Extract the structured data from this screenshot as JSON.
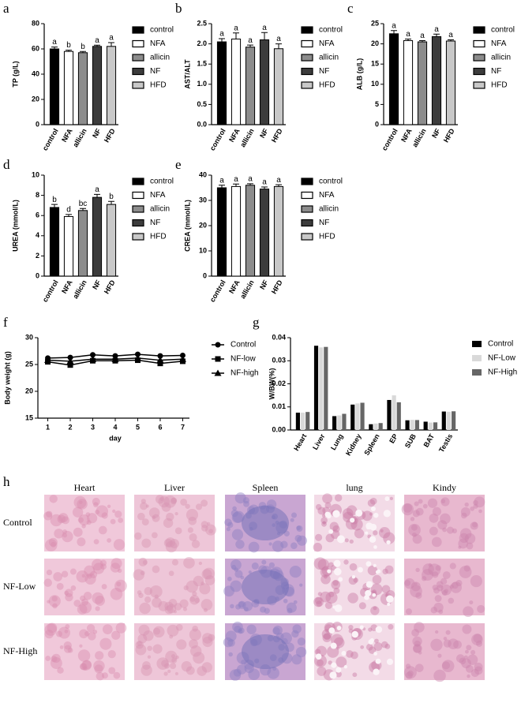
{
  "chart_data": [
    {
      "type": "bar",
      "panel": "a",
      "ylabel": "TP (g/L)",
      "categories": [
        "control",
        "NFA",
        "allicin",
        "NF",
        "HFD"
      ],
      "values": [
        60,
        58,
        57,
        62,
        62
      ],
      "errors": [
        1.5,
        1,
        1,
        1,
        3
      ],
      "letters": [
        "a",
        "b",
        "b",
        "a",
        "a"
      ],
      "colors": [
        "#000000",
        "#ffffff",
        "#8c8c8c",
        "#3c3c3c",
        "#c8c8c8"
      ],
      "ylim": [
        0,
        80
      ],
      "yticks": [
        0,
        20,
        40,
        60,
        80
      ]
    },
    {
      "type": "bar",
      "panel": "b",
      "ylabel": "AST/ALT",
      "categories": [
        "control",
        "NFA",
        "allicin",
        "NF",
        "HFD"
      ],
      "values": [
        2.05,
        2.12,
        1.92,
        2.1,
        1.88
      ],
      "errors": [
        0.08,
        0.15,
        0.05,
        0.18,
        0.12
      ],
      "letters": [
        "a",
        "a",
        "a",
        "a",
        "a"
      ],
      "colors": [
        "#000000",
        "#ffffff",
        "#8c8c8c",
        "#3c3c3c",
        "#c8c8c8"
      ],
      "ylim": [
        0,
        2.5
      ],
      "yticks": [
        {
          "value": 0,
          "label": "0.0"
        },
        0.5,
        {
          "value": 1,
          "label": "1.0"
        },
        1.5,
        {
          "value": 2,
          "label": "2.0"
        },
        2.5
      ]
    },
    {
      "type": "bar",
      "panel": "c",
      "ylabel": "ALB (g/L)",
      "categories": [
        "control",
        "NFA",
        "allicin",
        "NF",
        "HFD"
      ],
      "values": [
        22.5,
        20.8,
        20.5,
        21.8,
        20.7
      ],
      "errors": [
        0.8,
        0.4,
        0.3,
        0.6,
        0.3
      ],
      "letters": [
        "a",
        "a",
        "a",
        "a",
        "a"
      ],
      "colors": [
        "#000000",
        "#ffffff",
        "#8c8c8c",
        "#3c3c3c",
        "#c8c8c8"
      ],
      "ylim": [
        0,
        25
      ],
      "yticks": [
        0,
        5,
        10,
        15,
        20,
        25
      ]
    },
    {
      "type": "bar",
      "panel": "d",
      "ylabel": "UREA (mmol/L)",
      "categories": [
        "control",
        "NFA",
        "allicin",
        "NF",
        "HFD"
      ],
      "values": [
        6.8,
        5.9,
        6.5,
        7.8,
        7.1
      ],
      "errors": [
        0.3,
        0.2,
        0.2,
        0.3,
        0.3
      ],
      "letters": [
        "b",
        "d",
        "bc",
        "a",
        "b"
      ],
      "colors": [
        "#000000",
        "#ffffff",
        "#8c8c8c",
        "#3c3c3c",
        "#c8c8c8"
      ],
      "ylim": [
        0,
        10
      ],
      "yticks": [
        0,
        2,
        4,
        6,
        8,
        10
      ]
    },
    {
      "type": "bar",
      "panel": "e",
      "ylabel": "CREA (mmol/L)",
      "categories": [
        "control",
        "NFA",
        "allicin",
        "NF",
        "HFD"
      ],
      "values": [
        35,
        35.5,
        36,
        34.5,
        35.5
      ],
      "errors": [
        1,
        1,
        0.6,
        0.8,
        0.7
      ],
      "letters": [
        "a",
        "a",
        "a",
        "a",
        "a"
      ],
      "colors": [
        "#000000",
        "#ffffff",
        "#8c8c8c",
        "#3c3c3c",
        "#c8c8c8"
      ],
      "ylim": [
        0,
        40
      ],
      "yticks": [
        0,
        10,
        20,
        30,
        40
      ]
    },
    {
      "type": "line",
      "panel": "f",
      "xlabel": "day",
      "ylabel": "Body weight (g)",
      "x": [
        1,
        2,
        3,
        4,
        5,
        6,
        7
      ],
      "xlim": [
        0.7,
        7.3
      ],
      "xticks": [
        1,
        2,
        3,
        4,
        5,
        6,
        7
      ],
      "ylim": [
        15,
        30
      ],
      "yticks": [
        15,
        20,
        25,
        30
      ],
      "series": [
        {
          "name": "Control",
          "color": "#000000",
          "marker": "circle",
          "values": [
            26.2,
            26.3,
            26.8,
            26.6,
            26.9,
            26.6,
            26.7
          ]
        },
        {
          "name": "NF-low",
          "color": "#000000",
          "marker": "square",
          "values": [
            25.5,
            24.9,
            25.7,
            25.7,
            25.8,
            25.2,
            25.6
          ]
        },
        {
          "name": "NF-high",
          "color": "#000000",
          "marker": "triangle",
          "values": [
            25.8,
            25.6,
            26.0,
            26.0,
            26.2,
            25.8,
            26.0
          ]
        }
      ]
    },
    {
      "type": "bar",
      "panel": "g",
      "ylabel": "W/BW(%)",
      "categories": [
        "Heart",
        "Liver",
        "Lung",
        "Kidney",
        "Spleen",
        "EP",
        "SUB",
        "BAT",
        "Testis"
      ],
      "ylim": [
        0,
        0.04
      ],
      "yticks": [
        {
          "value": 0,
          "label": "0.00"
        },
        0.01,
        0.02,
        0.03,
        {
          "value": 0.04,
          "label": "0.04"
        }
      ],
      "series": [
        {
          "name": "Control",
          "color": "#000000",
          "values": [
            0.0075,
            0.0365,
            0.006,
            0.011,
            0.0025,
            0.013,
            0.0042,
            0.0036,
            0.008
          ]
        },
        {
          "name": "NF-Low",
          "color": "#d9d9d9",
          "values": [
            0.0075,
            0.0358,
            0.0063,
            0.0115,
            0.0028,
            0.015,
            0.0044,
            0.0032,
            0.0079
          ]
        },
        {
          "name": "NF-High",
          "color": "#666666",
          "values": [
            0.0078,
            0.036,
            0.007,
            0.0118,
            0.003,
            0.012,
            0.0043,
            0.0033,
            0.0081
          ]
        }
      ]
    }
  ],
  "histology": {
    "panel": "h",
    "columns": [
      "Heart",
      "Liver",
      "Spleen",
      "lung",
      "Kindy"
    ],
    "rows": [
      "Control",
      "NF-Low",
      "NF-High"
    ]
  }
}
